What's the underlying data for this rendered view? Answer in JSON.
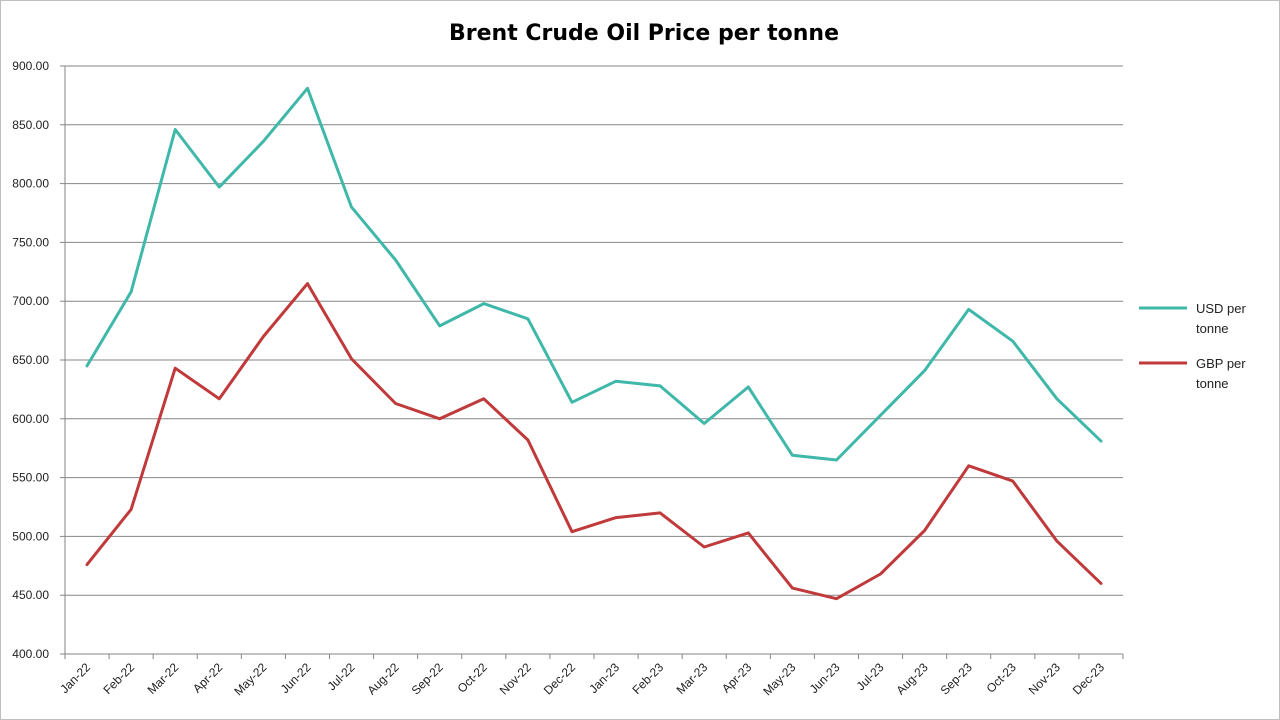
{
  "chart_data": {
    "type": "line",
    "title": "Brent Crude Oil Price per tonne",
    "xlabel": "",
    "ylabel": "",
    "ylim": [
      400,
      900
    ],
    "y_ticks": [
      "400.00",
      "450.00",
      "500.00",
      "550.00",
      "600.00",
      "650.00",
      "700.00",
      "750.00",
      "800.00",
      "850.00",
      "900.00"
    ],
    "grid": true,
    "legend_position": "right",
    "categories": [
      "Jan-22",
      "Feb-22",
      "Mar-22",
      "Apr-22",
      "May-22",
      "Jun-22",
      "Jul-22",
      "Aug-22",
      "Sep-22",
      "Oct-22",
      "Nov-22",
      "Dec-22",
      "Jan-23",
      "Feb-23",
      "Mar-23",
      "Apr-23",
      "May-23",
      "Jun-23",
      "Jul-23",
      "Aug-23",
      "Sep-23",
      "Oct-23",
      "Nov-23",
      "Dec-23"
    ],
    "series": [
      {
        "name": "USD per tonne",
        "legend_lines": [
          "USD per",
          "tonne"
        ],
        "color": "#3fb8a9",
        "values": [
          645,
          708,
          846,
          797,
          836,
          881,
          780,
          735,
          679,
          698,
          685,
          614,
          632,
          628,
          596,
          627,
          569,
          565,
          603,
          641,
          693,
          666,
          617,
          581
        ]
      },
      {
        "name": "GBP per tonne",
        "legend_lines": [
          "GBP per",
          "tonne"
        ],
        "color": "#c0393b",
        "values": [
          476,
          523,
          643,
          617,
          670,
          715,
          651,
          613,
          600,
          617,
          582,
          504,
          516,
          520,
          491,
          503,
          456,
          447,
          468,
          505,
          560,
          547,
          496,
          460
        ]
      }
    ]
  }
}
